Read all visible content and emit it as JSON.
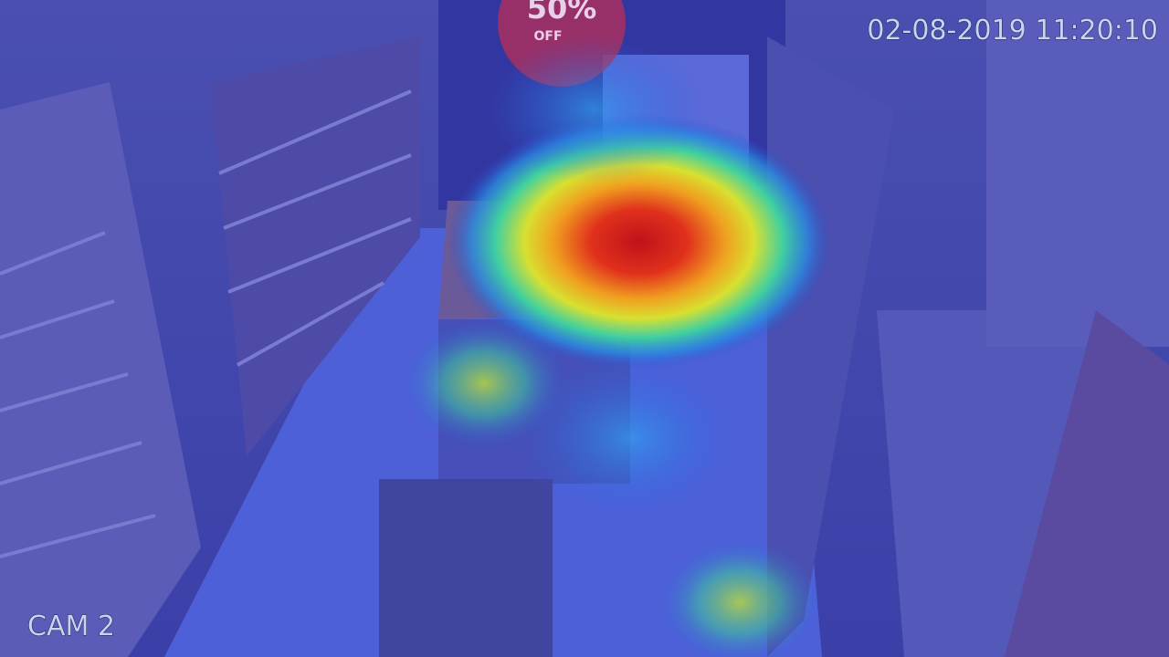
{
  "overlay": {
    "timestamp": "02-08-2019 11:20:10",
    "camera": "CAM 2"
  },
  "sign": {
    "line1": "50%",
    "line2": "OFF"
  }
}
